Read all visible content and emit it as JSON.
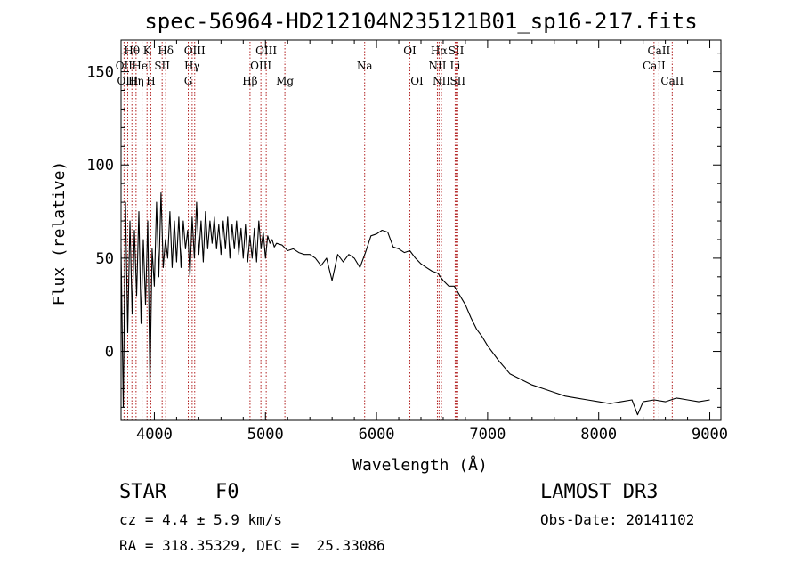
{
  "chart_data": {
    "type": "line",
    "title": "spec-56964-HD212104N235121B01_sp16-217.fits",
    "xlabel": "Wavelength (Å)",
    "ylabel": "Flux (relative)",
    "xlim": [
      3700,
      9100
    ],
    "ylim": [
      -37,
      167
    ],
    "x_ticks": [
      4000,
      5000,
      6000,
      7000,
      8000,
      9000
    ],
    "y_ticks": [
      0,
      50,
      100,
      150
    ],
    "series": [
      {
        "name": "spectrum",
        "x": [
          3700,
          3720,
          3740,
          3760,
          3780,
          3800,
          3820,
          3840,
          3860,
          3880,
          3900,
          3920,
          3940,
          3960,
          3980,
          4000,
          4020,
          4040,
          4060,
          4080,
          4100,
          4120,
          4140,
          4160,
          4180,
          4200,
          4220,
          4240,
          4260,
          4280,
          4300,
          4320,
          4340,
          4360,
          4380,
          4400,
          4420,
          4440,
          4460,
          4480,
          4500,
          4520,
          4540,
          4560,
          4580,
          4600,
          4620,
          4640,
          4660,
          4680,
          4700,
          4720,
          4740,
          4760,
          4780,
          4800,
          4820,
          4840,
          4860,
          4880,
          4900,
          4920,
          4940,
          4960,
          4980,
          5000,
          5020,
          5040,
          5060,
          5080,
          5100,
          5150,
          5200,
          5250,
          5300,
          5350,
          5400,
          5450,
          5500,
          5550,
          5600,
          5650,
          5700,
          5750,
          5800,
          5850,
          5900,
          5950,
          6000,
          6050,
          6100,
          6150,
          6200,
          6250,
          6300,
          6350,
          6400,
          6450,
          6500,
          6550,
          6600,
          6650,
          6700,
          6750,
          6800,
          6850,
          6900,
          6950,
          7000,
          7100,
          7200,
          7300,
          7400,
          7500,
          7600,
          7700,
          7800,
          7900,
          8000,
          8100,
          8200,
          8300,
          8350,
          8400,
          8500,
          8600,
          8700,
          8800,
          8900,
          9000
        ],
        "y": [
          55,
          -30,
          80,
          10,
          70,
          20,
          65,
          30,
          75,
          15,
          60,
          25,
          70,
          -18,
          55,
          35,
          80,
          40,
          85,
          45,
          60,
          50,
          75,
          45,
          70,
          48,
          72,
          45,
          70,
          55,
          65,
          40,
          72,
          50,
          80,
          52,
          70,
          48,
          75,
          55,
          70,
          58,
          72,
          55,
          68,
          52,
          70,
          55,
          72,
          50,
          68,
          55,
          70,
          52,
          66,
          50,
          68,
          48,
          62,
          50,
          66,
          48,
          70,
          55,
          64,
          50,
          62,
          58,
          60,
          56,
          58,
          57,
          54,
          55,
          53,
          52,
          52,
          50,
          46,
          50,
          38,
          52,
          48,
          52,
          50,
          45,
          53,
          62,
          63,
          65,
          64,
          56,
          55,
          53,
          54,
          50,
          47,
          45,
          43,
          42,
          38,
          35,
          35,
          30,
          25,
          18,
          12,
          8,
          3,
          -5,
          -12,
          -15,
          -18,
          -20,
          -22,
          -24,
          -25,
          -26,
          -27,
          -28,
          -27,
          -26,
          -34,
          -27,
          -26,
          -27,
          -25,
          -26,
          -27,
          -26
        ]
      }
    ],
    "spectral_lines": [
      {
        "label": "Hθ",
        "x": 3798,
        "row": 0
      },
      {
        "label": "OII",
        "x": 3727,
        "row": 1
      },
      {
        "label": "OIII",
        "x": 3760,
        "row": 2
      },
      {
        "label": "K",
        "x": 3934,
        "row": 0
      },
      {
        "label": "HeI",
        "x": 3889,
        "row": 1
      },
      {
        "label": "Hη",
        "x": 3835,
        "row": 2
      },
      {
        "label": "SII",
        "x": 4070,
        "row": 1
      },
      {
        "label": "H",
        "x": 3968,
        "row": 2
      },
      {
        "label": "Hδ",
        "x": 4102,
        "row": 0
      },
      {
        "label": "OIII",
        "x": 4363,
        "row": 0
      },
      {
        "label": "Hγ",
        "x": 4340,
        "row": 1
      },
      {
        "label": "G",
        "x": 4305,
        "row": 2
      },
      {
        "label": "Hβ",
        "x": 4861,
        "row": 2
      },
      {
        "label": "OIII",
        "x": 5007,
        "row": 0
      },
      {
        "label": "OIII",
        "x": 4959,
        "row": 1
      },
      {
        "label": "Mg",
        "x": 5175,
        "row": 2
      },
      {
        "label": "Na",
        "x": 5893,
        "row": 1
      },
      {
        "label": "OI",
        "x": 6300,
        "row": 0
      },
      {
        "label": "OI",
        "x": 6364,
        "row": 2
      },
      {
        "label": "Hα",
        "x": 6563,
        "row": 0
      },
      {
        "label": "NII",
        "x": 6548,
        "row": 1
      },
      {
        "label": "NII",
        "x": 6584,
        "row": 2
      },
      {
        "label": "SII",
        "x": 6717,
        "row": 0
      },
      {
        "label": "Li",
        "x": 6708,
        "row": 1
      },
      {
        "label": "SII",
        "x": 6731,
        "row": 2
      },
      {
        "label": "CaII",
        "x": 8542,
        "row": 0
      },
      {
        "label": "CaII",
        "x": 8498,
        "row": 1
      },
      {
        "label": "CaII",
        "x": 8662,
        "row": 2
      }
    ]
  },
  "info": {
    "class": "STAR",
    "subclass": "F0",
    "survey": "LAMOST DR3",
    "cz": "cz = 4.4 ± 5.9 km/s",
    "obs_date": "Obs-Date: 20141102",
    "coords": "RA = 318.35329, DEC =  25.33086"
  },
  "colors": {
    "spectrum": "#000000",
    "line_marker": "#b22222"
  }
}
